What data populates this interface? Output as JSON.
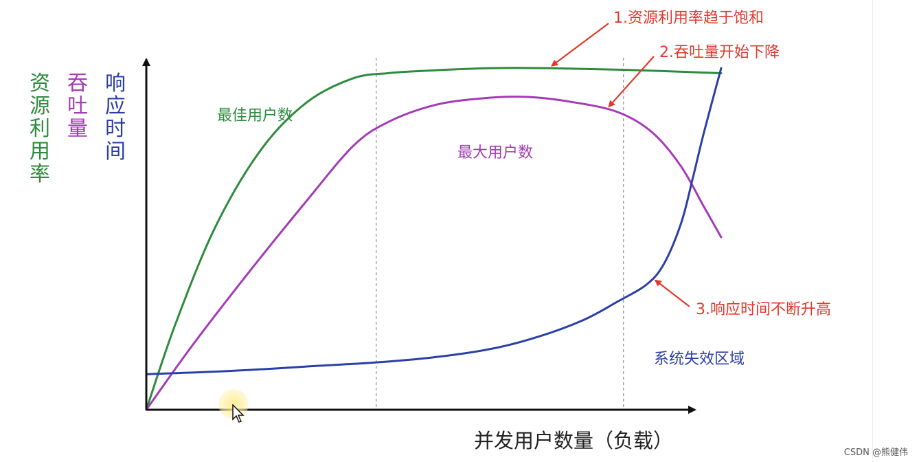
{
  "chart_data": {
    "type": "line",
    "xlabel": "并发用户数量（负载）",
    "ylabels": [
      {
        "text": "资源利用率",
        "color": "#2e8b3d"
      },
      {
        "text": "吞吐量",
        "color": "#a43bb6"
      },
      {
        "text": "响应时间",
        "color": "#2b3fa8"
      }
    ],
    "colors": {
      "resource": "#2e8b3d",
      "throughput": "#a43bb6",
      "response": "#2b3fa8",
      "annotation": "#e0392b",
      "axis": "#111111",
      "divider": "#9a9a9a"
    },
    "xlim": [
      0,
      100
    ],
    "ylim": [
      0,
      100
    ],
    "grid": false,
    "legend": "none",
    "vertical_dividers": [
      40,
      83
    ],
    "series": [
      {
        "key": "resource",
        "x": [
          0,
          5,
          12,
          20,
          28,
          36,
          42,
          46,
          52,
          60,
          70,
          83,
          100
        ],
        "y": [
          0,
          25,
          54,
          77,
          91,
          98,
          99.5,
          100,
          100.5,
          101,
          101,
          100.5,
          99.5
        ]
      },
      {
        "key": "throughput",
        "x": [
          0,
          8,
          18,
          28,
          36,
          42,
          50,
          58,
          66,
          74,
          82,
          88,
          93,
          97,
          100
        ],
        "y": [
          0,
          19,
          41,
          62,
          78,
          85,
          90,
          92,
          92.5,
          91,
          88,
          82,
          72,
          60,
          51
        ]
      },
      {
        "key": "response",
        "x": [
          0,
          15,
          30,
          40,
          50,
          60,
          68,
          76,
          82,
          87,
          90,
          93,
          95,
          97,
          100
        ],
        "y": [
          10.5,
          11.5,
          13,
          14,
          15.5,
          18,
          21.5,
          26.5,
          32,
          37,
          43,
          55,
          68,
          82,
          101
        ]
      }
    ],
    "annotations": [
      {
        "text": "1.资源利用率趋于饱和",
        "target": "resource"
      },
      {
        "text": "2.吞吐量开始下降",
        "target": "throughput"
      },
      {
        "text": "3.响应时间不断升高",
        "target": "response"
      }
    ],
    "region_labels": [
      {
        "text": "最佳用户数",
        "color": "#2e8b3d"
      },
      {
        "text": "最大用户数",
        "color": "#a43bb6"
      },
      {
        "text": "系统失效区域",
        "color": "#2b3fa8"
      }
    ]
  },
  "watermark": "CSDN @熊健伟"
}
